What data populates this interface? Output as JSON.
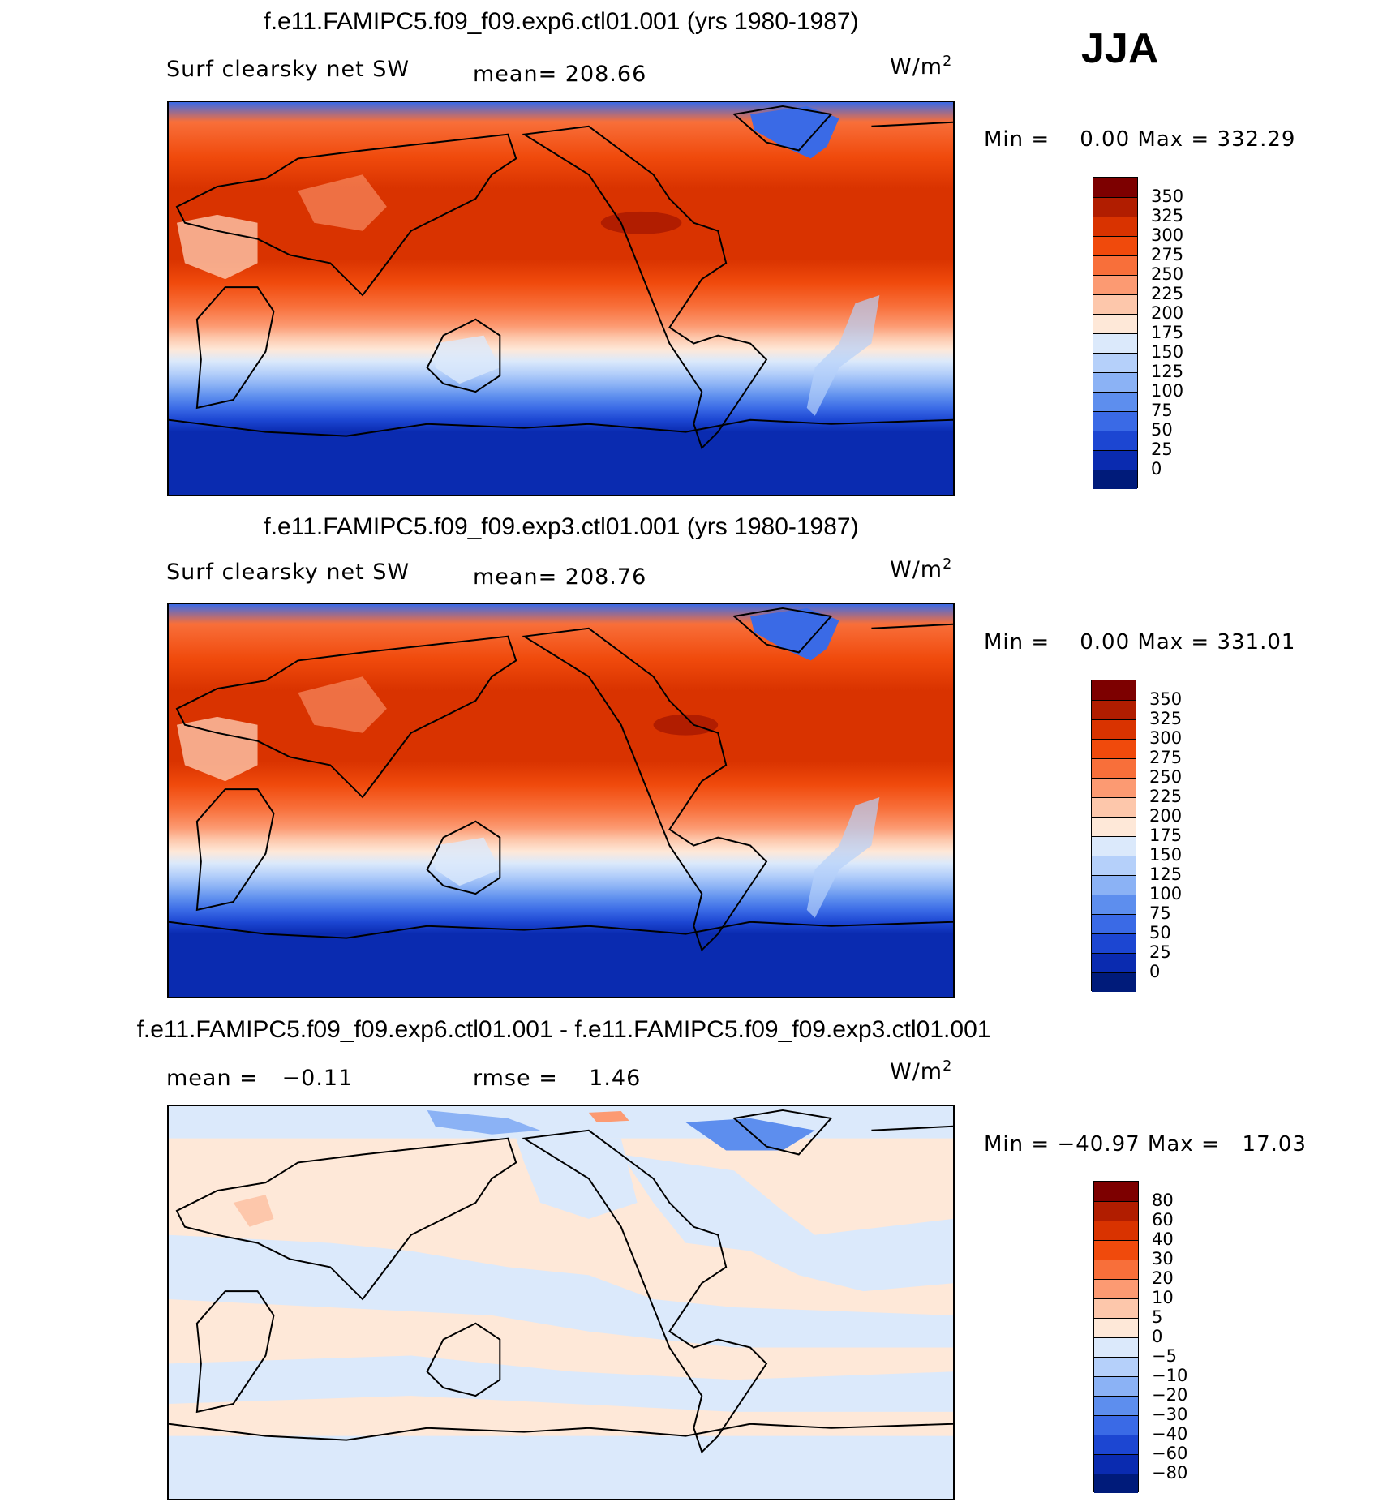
{
  "season": "JJA",
  "panels": [
    {
      "title": "f.e11.FAMIPC5.f09_f09.exp6.ctl01.001 (yrs 1980-1987)",
      "variable": "Surf clearsky net SW",
      "stat_text": "mean= 208.66",
      "units": "W/m",
      "units_exp": "2",
      "minmax_text": "Min =    0.00 Max = 332.29"
    },
    {
      "title": "f.e11.FAMIPC5.f09_f09.exp3.ctl01.001 (yrs 1980-1987)",
      "variable": "Surf clearsky net SW",
      "stat_text": "mean= 208.76",
      "units": "W/m",
      "units_exp": "2",
      "minmax_text": "Min =    0.00 Max = 331.01"
    },
    {
      "title": "f.e11.FAMIPC5.f09_f09.exp6.ctl01.001 - f.e11.FAMIPC5.f09_f09.exp3.ctl01.001",
      "variable": "mean =   −0.11",
      "stat_text": "rmse =    1.46",
      "units": "W/m",
      "units_exp": "2",
      "minmax_text": "Min = −40.97 Max =   17.03"
    }
  ],
  "colorbars": {
    "absolute": {
      "labels": [
        "350",
        "325",
        "300",
        "275",
        "250",
        "225",
        "200",
        "175",
        "150",
        "125",
        "100",
        "75",
        "50",
        "25",
        "0"
      ],
      "colors": [
        "#7d0000",
        "#b11d00",
        "#d93300",
        "#f04a0c",
        "#f86f3a",
        "#fc9a72",
        "#fdc7ab",
        "#fee8d8",
        "#dbe9fb",
        "#b5d0fa",
        "#8bb2f5",
        "#5d8eee",
        "#3a6ae6",
        "#1c46d2",
        "#0a2bb0",
        "#001b7a"
      ]
    },
    "difference": {
      "labels": [
        "80",
        "60",
        "40",
        "30",
        "20",
        "10",
        "5",
        "0",
        "−5",
        "−10",
        "−20",
        "−30",
        "−40",
        "−60",
        "−80"
      ],
      "colors": [
        "#7d0000",
        "#b11d00",
        "#d93300",
        "#f04a0c",
        "#f86f3a",
        "#fc9a72",
        "#fdc7ab",
        "#fee8d8",
        "#dbe9fb",
        "#b5d0fa",
        "#8bb2f5",
        "#5d8eee",
        "#3a6ae6",
        "#1c46d2",
        "#0a2bb0",
        "#001b7a"
      ]
    }
  }
}
